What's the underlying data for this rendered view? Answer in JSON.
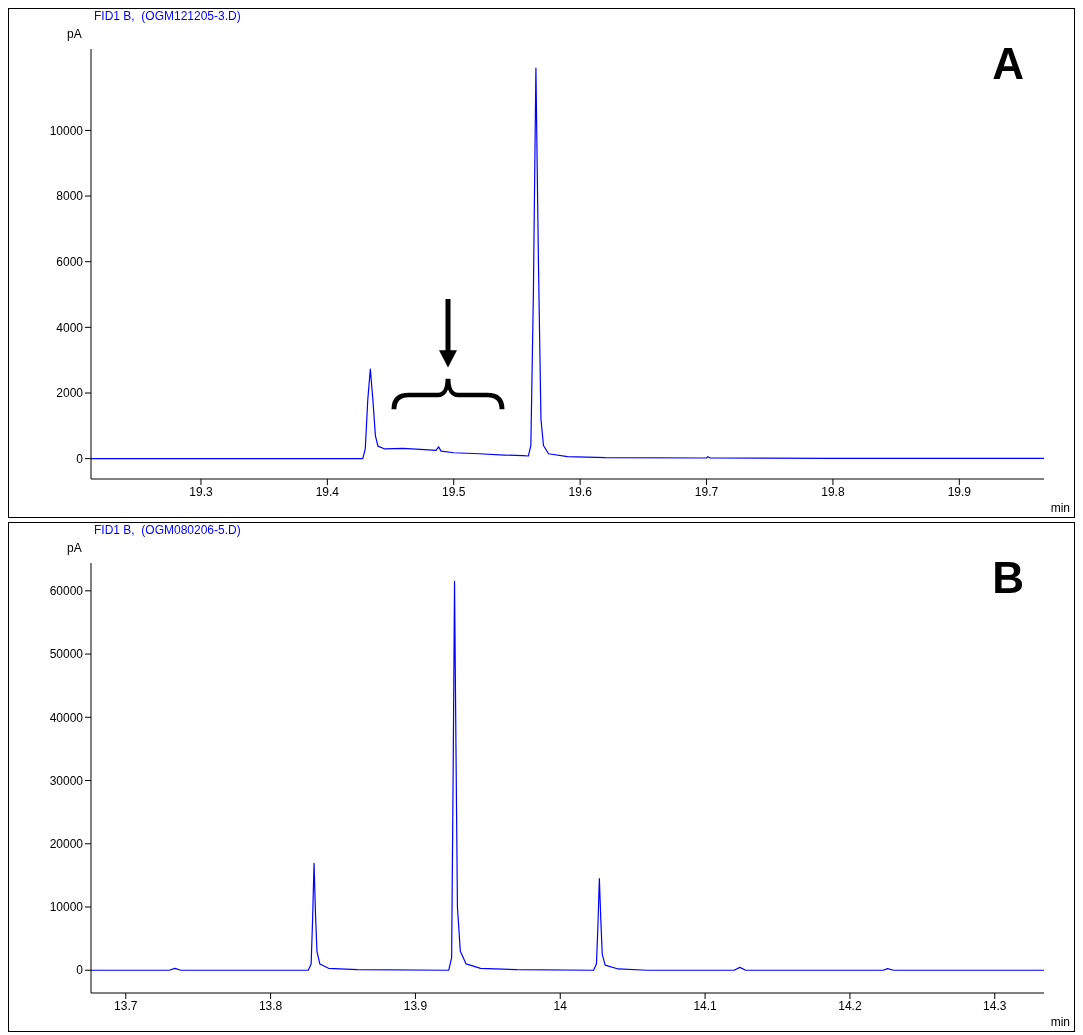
{
  "chart_data": [
    {
      "type": "line",
      "title": "FID1 B,  (OGM121205-3.D)",
      "xlabel": "min",
      "ylabel": "pA",
      "annotations": [
        "A"
      ],
      "grid": false,
      "legend": false,
      "marker": "none",
      "line_style": "solid",
      "xlim": [
        19.213,
        19.967
      ],
      "xticks": [
        19.3,
        19.4,
        19.5,
        19.6,
        19.7,
        19.8,
        19.9
      ],
      "ylim": [
        -620,
        12480
      ],
      "yticks": [
        0,
        2000,
        4000,
        6000,
        8000,
        10000
      ],
      "series": [
        {
          "color": "#0000ff",
          "x": [
            19.213,
            19.3,
            19.4,
            19.428,
            19.43,
            19.432,
            19.434,
            19.436,
            19.438,
            19.44,
            19.445,
            19.46,
            19.48,
            19.486,
            19.488,
            19.49,
            19.5,
            19.52,
            19.54,
            19.555,
            19.559,
            19.561,
            19.563,
            19.565,
            19.567,
            19.569,
            19.571,
            19.575,
            19.59,
            19.62,
            19.7,
            19.701,
            19.703,
            19.8,
            19.967
          ],
          "values": [
            0,
            0,
            0,
            0,
            300,
            1800,
            2730,
            1800,
            700,
            380,
            300,
            310,
            270,
            250,
            360,
            230,
            180,
            150,
            110,
            90,
            80,
            400,
            5000,
            11900,
            6000,
            1200,
            400,
            150,
            60,
            30,
            20,
            60,
            20,
            10,
            10
          ]
        }
      ]
    },
    {
      "type": "line",
      "title": "FID1 B,  (OGM080206-5.D)",
      "xlabel": "min",
      "ylabel": "pA",
      "annotations": [
        "B"
      ],
      "grid": false,
      "legend": false,
      "marker": "none",
      "line_style": "solid",
      "xlim": [
        13.676,
        14.334
      ],
      "xticks": [
        13.7,
        13.8,
        13.9,
        14,
        14.1,
        14.2,
        14.3
      ],
      "ylim": [
        -3600,
        64400
      ],
      "yticks": [
        0,
        10000,
        20000,
        30000,
        40000,
        50000,
        60000
      ],
      "series": [
        {
          "color": "#0000ff",
          "x": [
            13.676,
            13.73,
            13.734,
            13.738,
            13.826,
            13.828,
            13.829,
            13.83,
            13.831,
            13.832,
            13.834,
            13.84,
            13.86,
            13.923,
            13.925,
            13.926,
            13.927,
            13.928,
            13.929,
            13.931,
            13.935,
            13.945,
            13.97,
            14.023,
            14.025,
            14.026,
            14.027,
            14.028,
            14.029,
            14.031,
            14.04,
            14.06,
            14.12,
            14.124,
            14.128,
            14.223,
            14.226,
            14.23,
            14.334
          ],
          "values": [
            0,
            0,
            300,
            0,
            0,
            1000,
            8000,
            16900,
            9000,
            3000,
            1000,
            300,
            100,
            0,
            2000,
            30000,
            61500,
            35000,
            10000,
            3000,
            1000,
            300,
            100,
            0,
            1000,
            7000,
            14500,
            8000,
            2500,
            800,
            200,
            0,
            0,
            450,
            0,
            0,
            250,
            0,
            0
          ]
        }
      ]
    }
  ]
}
